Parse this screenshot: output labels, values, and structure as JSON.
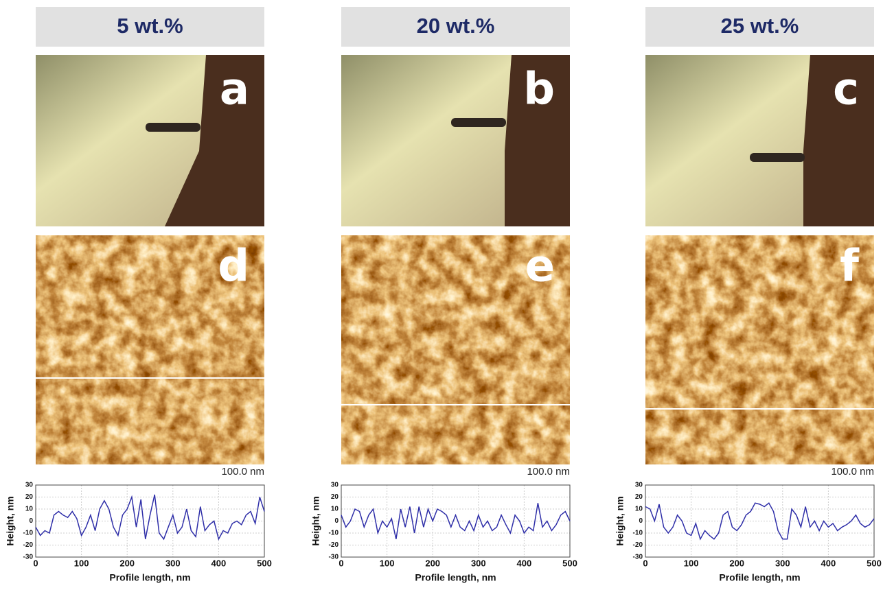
{
  "panels": [
    {
      "header": "5 wt.%",
      "photo_label": "a",
      "afm_label": "d",
      "scale_bar": "100.0 nm"
    },
    {
      "header": "20 wt.%",
      "photo_label": "b",
      "afm_label": "e",
      "scale_bar": "100.0 nm"
    },
    {
      "header": "25 wt.%",
      "photo_label": "c",
      "afm_label": "f",
      "scale_bar": "100.0 nm"
    }
  ],
  "chart_data": [
    {
      "type": "line",
      "x_label": "Profile length, nm",
      "y_label": "Height, nm",
      "x": [
        0,
        10,
        20,
        30,
        40,
        50,
        60,
        70,
        80,
        90,
        100,
        110,
        120,
        130,
        140,
        150,
        160,
        170,
        180,
        190,
        200,
        210,
        220,
        230,
        240,
        250,
        260,
        270,
        280,
        290,
        300,
        310,
        320,
        330,
        340,
        350,
        360,
        370,
        380,
        390,
        400,
        410,
        420,
        430,
        440,
        450,
        460,
        470,
        480,
        490,
        500
      ],
      "series": [
        {
          "color": "#2e2ea8",
          "values": [
            -5,
            -12,
            -8,
            -10,
            5,
            8,
            5,
            3,
            8,
            2,
            -12,
            -5,
            5,
            -8,
            10,
            17,
            10,
            -5,
            -12,
            5,
            10,
            20,
            -5,
            18,
            -15,
            5,
            22,
            -10,
            -15,
            -5,
            5,
            -10,
            -5,
            10,
            -8,
            -13,
            12,
            -8,
            -3,
            0,
            -15,
            -8,
            -10,
            -2,
            0,
            -3,
            5,
            8,
            -2,
            20,
            8
          ]
        }
      ],
      "xlim": [
        0,
        500
      ],
      "ylim": [
        -30,
        30
      ],
      "xticks": [
        0,
        100,
        200,
        300,
        400,
        500
      ],
      "yticks": [
        -30,
        -20,
        -10,
        0,
        10,
        20,
        30
      ],
      "grid": true
    },
    {
      "type": "line",
      "x_label": "Profile length, nm",
      "y_label": "Height, nm",
      "x": [
        0,
        10,
        20,
        30,
        40,
        50,
        60,
        70,
        80,
        90,
        100,
        110,
        120,
        130,
        140,
        150,
        160,
        170,
        180,
        190,
        200,
        210,
        220,
        230,
        240,
        250,
        260,
        270,
        280,
        290,
        300,
        310,
        320,
        330,
        340,
        350,
        360,
        370,
        380,
        390,
        400,
        410,
        420,
        430,
        440,
        450,
        460,
        470,
        480,
        490,
        500
      ],
      "series": [
        {
          "color": "#2e2ea8",
          "values": [
            5,
            -5,
            0,
            10,
            8,
            -5,
            5,
            10,
            -10,
            0,
            -5,
            2,
            -15,
            10,
            -5,
            12,
            -10,
            12,
            -5,
            10,
            0,
            10,
            8,
            5,
            -5,
            5,
            -5,
            -8,
            0,
            -8,
            5,
            -5,
            0,
            -8,
            -5,
            5,
            -3,
            -10,
            5,
            0,
            -10,
            -5,
            -8,
            15,
            -5,
            0,
            -8,
            -3,
            5,
            8,
            0
          ]
        }
      ],
      "xlim": [
        0,
        500
      ],
      "ylim": [
        -30,
        30
      ],
      "xticks": [
        0,
        100,
        200,
        300,
        400,
        500
      ],
      "yticks": [
        -30,
        -20,
        -10,
        0,
        10,
        20,
        30
      ],
      "grid": true
    },
    {
      "type": "line",
      "x_label": "Profile length, nm",
      "y_label": "Height, nm",
      "x": [
        0,
        10,
        20,
        30,
        40,
        50,
        60,
        70,
        80,
        90,
        100,
        110,
        120,
        130,
        140,
        150,
        160,
        170,
        180,
        190,
        200,
        210,
        220,
        230,
        240,
        250,
        260,
        270,
        280,
        290,
        300,
        310,
        320,
        330,
        340,
        350,
        360,
        370,
        380,
        390,
        400,
        410,
        420,
        430,
        440,
        450,
        460,
        470,
        480,
        490,
        500
      ],
      "series": [
        {
          "color": "#2e2ea8",
          "values": [
            12,
            10,
            0,
            14,
            -5,
            -10,
            -5,
            5,
            0,
            -10,
            -12,
            -2,
            -15,
            -8,
            -12,
            -15,
            -10,
            5,
            8,
            -5,
            -8,
            -3,
            5,
            8,
            15,
            14,
            12,
            15,
            8,
            -8,
            -15,
            -15,
            10,
            5,
            -5,
            12,
            -5,
            0,
            -8,
            0,
            -5,
            -2,
            -8,
            -5,
            -3,
            0,
            5,
            -2,
            -5,
            -3,
            2
          ]
        }
      ],
      "xlim": [
        0,
        500
      ],
      "ylim": [
        -30,
        30
      ],
      "xticks": [
        0,
        100,
        200,
        300,
        400,
        500
      ],
      "yticks": [
        -30,
        -20,
        -10,
        0,
        10,
        20,
        30
      ],
      "grid": true
    }
  ]
}
